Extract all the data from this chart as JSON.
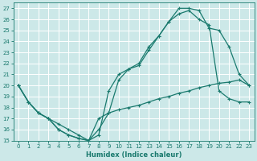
{
  "xlabel": "Humidex (Indice chaleur)",
  "bg_color": "#cce8e8",
  "grid_color": "#b0d0d0",
  "line_color": "#1a7a6e",
  "xlim": [
    -0.5,
    23.5
  ],
  "ylim": [
    15,
    27.5
  ],
  "yticks": [
    15,
    16,
    17,
    18,
    19,
    20,
    21,
    22,
    23,
    24,
    25,
    26,
    27
  ],
  "xticks": [
    0,
    1,
    2,
    3,
    4,
    5,
    6,
    7,
    8,
    9,
    10,
    11,
    12,
    13,
    14,
    15,
    16,
    17,
    18,
    19,
    20,
    21,
    22,
    23
  ],
  "line1_x": [
    0,
    1,
    2,
    3,
    4,
    5,
    6,
    7,
    8,
    9,
    10,
    11,
    12,
    13,
    14,
    15,
    16,
    17,
    18,
    19,
    20,
    21,
    22,
    23
  ],
  "line1_y": [
    20,
    18.5,
    17.5,
    17,
    16,
    15.5,
    15.2,
    15,
    15.5,
    19.5,
    21,
    21.5,
    22,
    23.5,
    24.5,
    25.8,
    27,
    27,
    26.8,
    25.2,
    25,
    23.5,
    21,
    20
  ],
  "line2_x": [
    0,
    1,
    2,
    3,
    4,
    5,
    6,
    7,
    8,
    9,
    10,
    11,
    12,
    13,
    14,
    15,
    16,
    17,
    18,
    19,
    20,
    21,
    22,
    23
  ],
  "line2_y": [
    20,
    18.5,
    17.5,
    17,
    16,
    15.5,
    15.2,
    15,
    16,
    17.5,
    20.5,
    21.5,
    21.8,
    23.2,
    24.5,
    25.8,
    26.5,
    26.8,
    26,
    25.5,
    19.5,
    18.8,
    18.5,
    18.5
  ],
  "line3_x": [
    0,
    1,
    2,
    3,
    4,
    5,
    6,
    7,
    8,
    9,
    10,
    11,
    12,
    13,
    14,
    15,
    16,
    17,
    18,
    19,
    20,
    21,
    22,
    23
  ],
  "line3_y": [
    20,
    18.5,
    17.5,
    17,
    16.5,
    16,
    15.5,
    15,
    17,
    17.5,
    17.8,
    18,
    18.2,
    18.5,
    18.8,
    19,
    19.3,
    19.5,
    19.8,
    20,
    20.2,
    20.3,
    20.5,
    20
  ]
}
